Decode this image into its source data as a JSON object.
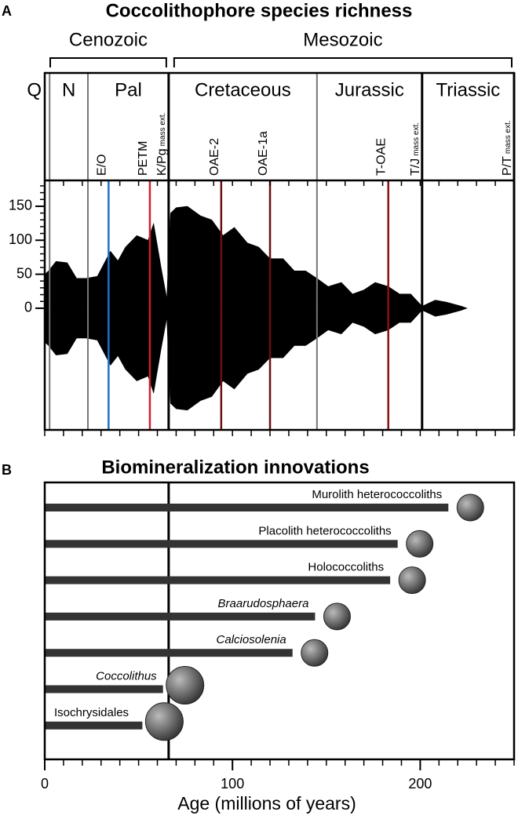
{
  "chart_data": [
    {
      "type": "spindle",
      "panel": "A",
      "title": "Coccolithophore species richness",
      "color": "#000000",
      "x": [
        0,
        2,
        6,
        12,
        17,
        22,
        28,
        35,
        39,
        43,
        49,
        55,
        58,
        62,
        65,
        67,
        70,
        76,
        83,
        89,
        95,
        101,
        108,
        114,
        120,
        127,
        133,
        139,
        145,
        151,
        158,
        164,
        170,
        176,
        183,
        189,
        195,
        201,
        208,
        214,
        222,
        225
      ],
      "values": [
        50,
        55,
        69,
        67,
        44,
        44,
        47,
        84,
        70,
        90,
        107,
        100,
        125,
        60,
        15,
        140,
        148,
        150,
        136,
        130,
        107,
        119,
        96,
        90,
        73,
        73,
        55,
        55,
        44,
        32,
        38,
        21,
        27,
        38,
        32,
        21,
        21,
        3,
        12,
        9,
        3,
        0
      ],
      "xlim": [
        0,
        250
      ],
      "xminorticks": [
        0,
        10,
        20,
        30,
        40,
        50,
        60,
        70,
        80,
        90,
        100,
        110,
        120,
        130,
        140,
        150,
        160,
        170,
        180,
        190,
        200,
        210,
        220,
        230,
        240,
        250
      ],
      "ylim": [
        -179,
        188
      ],
      "yticks": [
        0,
        50,
        100,
        150
      ],
      "yminorticks": [
        0,
        10,
        20,
        30,
        40,
        50,
        60,
        70,
        80,
        90,
        100,
        110,
        120,
        130,
        140,
        150,
        160,
        170,
        180
      ],
      "eras": [
        {
          "label": "Cenozoic",
          "start": 0,
          "end": 66
        },
        {
          "label": "Mesozoic",
          "start": 66,
          "end": 250
        }
      ],
      "periods": [
        {
          "label": "Q",
          "start": 0,
          "end": 2.6
        },
        {
          "label": "N",
          "start": 2.6,
          "end": 23
        },
        {
          "label": "Pal",
          "start": 23,
          "end": 66
        },
        {
          "label": "Cretaceous",
          "start": 66,
          "end": 145
        },
        {
          "label": "Jurassic",
          "start": 145,
          "end": 201
        },
        {
          "label": "Triassic",
          "start": 201,
          "end": 250
        }
      ],
      "events": [
        {
          "label": "E/O",
          "age": 34,
          "color": "#1f6fd1"
        },
        {
          "label": "PETM",
          "age": 56,
          "color": "#d11f2a"
        },
        {
          "label": "K/Pg",
          "note": "mass ext.",
          "age": 66,
          "color": "#000000"
        },
        {
          "label": "OAE-2",
          "age": 94,
          "color": "#6b1010"
        },
        {
          "label": "OAE-1a",
          "age": 120,
          "color": "#6b1010"
        },
        {
          "label": "T-OAE",
          "age": 183,
          "color": "#8b1010"
        },
        {
          "label": "T/J",
          "note": "mass ext.",
          "age": 201,
          "color": "#000000"
        },
        {
          "label": "P/T",
          "note": "mass ext.",
          "age": 250,
          "color": "#000000"
        }
      ]
    },
    {
      "type": "bar",
      "orientation": "horizontal",
      "panel": "B",
      "title": "Biomineralization innovations",
      "color": "#333333",
      "categories": [
        "Murolith heterococcoliths",
        "Placolith heterococcoliths",
        "Holococcoliths",
        "Braarudosphaera",
        "Calciosolenia",
        "Coccolithus",
        "Isochrysidales"
      ],
      "italic": [
        false,
        false,
        false,
        true,
        true,
        true,
        false
      ],
      "values": [
        215,
        188,
        184,
        144,
        132,
        63,
        52
      ],
      "marker_line": 66,
      "xlim": [
        0,
        250
      ],
      "xticks": [
        0,
        100,
        200
      ],
      "xminorticks": [
        0,
        10,
        20,
        30,
        40,
        50,
        60,
        70,
        80,
        90,
        100,
        110,
        120,
        130,
        140,
        150,
        160,
        170,
        180,
        190,
        200,
        210,
        220,
        230,
        240,
        250
      ],
      "xlabel": "Age (millions of years)"
    }
  ]
}
